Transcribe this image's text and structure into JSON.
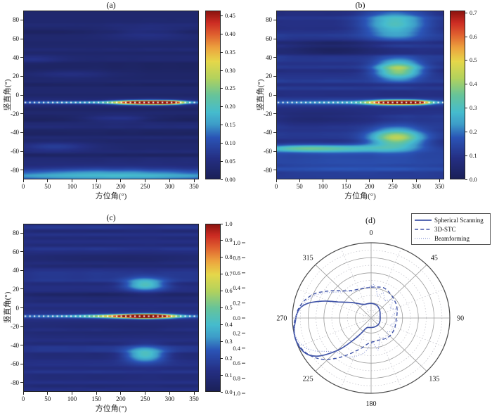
{
  "figure": {
    "background": "#ffffff",
    "panel_titles": [
      "(a)",
      "(b)",
      "(c)",
      "(d)"
    ]
  },
  "colormap": {
    "stops": [
      [
        0.0,
        "#1b2057"
      ],
      [
        0.13,
        "#253085"
      ],
      [
        0.25,
        "#2b55b7"
      ],
      [
        0.33,
        "#3e9ec9"
      ],
      [
        0.4,
        "#46bcce"
      ],
      [
        0.5,
        "#67c49a"
      ],
      [
        0.6,
        "#b2d25e"
      ],
      [
        0.7,
        "#e6d84b"
      ],
      [
        0.78,
        "#eda43f"
      ],
      [
        0.86,
        "#e06030"
      ],
      [
        0.93,
        "#cd2d24"
      ],
      [
        1.0,
        "#8a1410"
      ]
    ]
  },
  "chart_data": [
    {
      "type": "heatmap",
      "panel": "a",
      "title": "(a)",
      "xlabel": "方位角(°)",
      "ylabel": "竖直角(°)",
      "x_range": [
        0,
        360
      ],
      "y_range": [
        -90,
        90
      ],
      "x_ticks": [
        0,
        50,
        100,
        150,
        200,
        250,
        300,
        350
      ],
      "y_ticks": [
        80,
        60,
        40,
        20,
        0,
        -20,
        -40,
        -60,
        -80
      ],
      "colorbar": {
        "labels": [
          "0.00",
          "0.05",
          "0.10",
          "0.15",
          "0.20",
          "0.25",
          "0.30",
          "0.35",
          "0.40",
          "0.45"
        ],
        "values": [
          0,
          0.05,
          0.1,
          0.15,
          0.2,
          0.25,
          0.3,
          0.35,
          0.4,
          0.45
        ],
        "bar_max": 0.465
      },
      "base_level": 0.028,
      "texture": {
        "seed": 11,
        "amp": 0.022
      },
      "dotted_line": {
        "elevation": -8,
        "color": "#ffffff"
      },
      "hotspots": [
        {
          "azimuth": 250,
          "elevation": -8,
          "sigma_az": 40,
          "sigma_el": 1.6,
          "value": 0.46
        },
        {
          "azimuth": 298,
          "elevation": -8,
          "sigma_az": 20,
          "sigma_el": 1.4,
          "value": 0.28
        },
        {
          "azimuth": 180,
          "elevation": -8,
          "sigma_az": 185,
          "sigma_el": 1.2,
          "value": 0.135
        },
        {
          "azimuth": 180,
          "elevation": -85,
          "sigma_az": 240,
          "sigma_el": 5.5,
          "value": 0.152
        },
        {
          "azimuth": 195,
          "elevation": -25,
          "sigma_az": 48,
          "sigma_el": 2.6,
          "value": 0.05
        },
        {
          "azimuth": 65,
          "elevation": -55,
          "sigma_az": 55,
          "sigma_el": 3.5,
          "value": 0.05
        },
        {
          "azimuth": 255,
          "elevation": 66,
          "sigma_az": 60,
          "sigma_el": 5,
          "value": 0.035
        },
        {
          "azimuth": 95,
          "elevation": 22,
          "sigma_az": 60,
          "sigma_el": 3,
          "value": 0.03
        },
        {
          "azimuth": 20,
          "elevation": 38,
          "sigma_az": 40,
          "sigma_el": 3,
          "value": 0.03
        }
      ]
    },
    {
      "type": "heatmap",
      "panel": "b",
      "title": "(b)",
      "xlabel": "方位角(°)",
      "ylabel": "竖直角(°)",
      "x_range": [
        0,
        360
      ],
      "y_range": [
        -90,
        90
      ],
      "x_ticks": [
        0,
        50,
        100,
        150,
        200,
        250,
        300,
        350
      ],
      "y_ticks": [
        80,
        60,
        40,
        20,
        0,
        -20,
        -40,
        -60,
        -80
      ],
      "colorbar": {
        "labels": [
          "0.0",
          "0.1",
          "0.2",
          "0.3",
          "0.4",
          "0.5",
          "0.6",
          "0.7"
        ],
        "values": [
          0,
          0.1,
          0.2,
          0.3,
          0.4,
          0.5,
          0.6,
          0.7
        ],
        "bar_max": 0.71
      },
      "base_level": 0.1,
      "texture": {
        "seed": 23,
        "amp": 0.034
      },
      "dotted_line": {
        "elevation": -8,
        "color": "#ffffff"
      },
      "hotspots": [
        {
          "azimuth": 253,
          "elevation": -8,
          "sigma_az": 36,
          "sigma_el": 1.7,
          "value": 0.68
        },
        {
          "azimuth": 300,
          "elevation": -8,
          "sigma_az": 20,
          "sigma_el": 1.5,
          "value": 0.4
        },
        {
          "azimuth": 180,
          "elevation": -8,
          "sigma_az": 185,
          "sigma_el": 1.5,
          "value": 0.18
        },
        {
          "azimuth": 255,
          "elevation": 76,
          "sigma_az": 46,
          "sigma_el": 11,
          "value": 0.22
        },
        {
          "azimuth": 262,
          "elevation": 27,
          "sigma_az": 34,
          "sigma_el": 7,
          "value": 0.33
        },
        {
          "azimuth": 258,
          "elevation": -46,
          "sigma_az": 40,
          "sigma_el": 7,
          "value": 0.33
        },
        {
          "azimuth": 150,
          "elevation": -57,
          "sigma_az": 95,
          "sigma_el": 3,
          "value": 0.18
        },
        {
          "azimuth": 40,
          "elevation": -57,
          "sigma_az": 60,
          "sigma_el": 2.5,
          "value": 0.15
        },
        {
          "azimuth": 180,
          "elevation": -76,
          "sigma_az": 200,
          "sigma_el": 9,
          "value": 0.06
        },
        {
          "azimuth": 120,
          "elevation": 50,
          "sigma_az": 80,
          "sigma_el": 6,
          "value": -0.07
        },
        {
          "azimuth": 90,
          "elevation": -25,
          "sigma_az": 100,
          "sigma_el": 6,
          "value": -0.06
        }
      ]
    },
    {
      "type": "heatmap",
      "panel": "c",
      "title": "(c)",
      "xlabel": "方位角(°)",
      "ylabel": "竖直角(°)",
      "x_range": [
        0,
        360
      ],
      "y_range": [
        -90,
        90
      ],
      "x_ticks": [
        0,
        50,
        100,
        150,
        200,
        250,
        300,
        350
      ],
      "y_ticks": [
        80,
        60,
        40,
        20,
        0,
        -20,
        -40,
        -60,
        -80
      ],
      "colorbar": {
        "labels": [
          "0.0",
          "0.1",
          "0.2",
          "0.3",
          "0.4",
          "0.5",
          "0.6",
          "0.7",
          "0.8",
          "0.9",
          "1.0"
        ],
        "values": [
          0,
          0.1,
          0.2,
          0.3,
          0.4,
          0.5,
          0.6,
          0.7,
          0.8,
          0.9,
          1.0
        ],
        "bar_max": 1.0
      },
      "base_level": 0.12,
      "texture": {
        "seed": 37,
        "amp": 0.05
      },
      "dotted_line": {
        "elevation": -9,
        "color": "#ffffff"
      },
      "hotspots": [
        {
          "azimuth": 257,
          "elevation": -9,
          "sigma_az": 33,
          "sigma_el": 1.6,
          "value": 0.95
        },
        {
          "azimuth": 215,
          "elevation": -9,
          "sigma_az": 50,
          "sigma_el": 1.4,
          "value": 0.5
        },
        {
          "azimuth": 180,
          "elevation": -9,
          "sigma_az": 185,
          "sigma_el": 1.3,
          "value": 0.27
        },
        {
          "azimuth": 250,
          "elevation": 25,
          "sigma_az": 29,
          "sigma_el": 5,
          "value": 0.33
        },
        {
          "azimuth": 250,
          "elevation": -50,
          "sigma_az": 29,
          "sigma_el": 6,
          "value": 0.33
        },
        {
          "azimuth": 180,
          "elevation": 52,
          "sigma_az": 200,
          "sigma_el": 5,
          "value": -0.07
        },
        {
          "azimuth": 180,
          "elevation": -22,
          "sigma_az": 200,
          "sigma_el": 5,
          "value": -0.055
        },
        {
          "azimuth": 180,
          "elevation": 14,
          "sigma_az": 200,
          "sigma_el": 4,
          "value": -0.05
        }
      ]
    },
    {
      "type": "polar",
      "panel": "d",
      "title": "(d)",
      "angle_labels": [
        "0",
        "45",
        "90",
        "135",
        "180",
        "225",
        "270",
        "315"
      ],
      "radial_major_ticks": [
        0.2,
        0.4,
        0.6,
        0.8,
        1.0
      ],
      "radial_minor_ticks": [
        0.1,
        0.3,
        0.5,
        0.7,
        0.9
      ],
      "ruler_labels": [
        "1.0",
        "0.8",
        "0.6",
        "0.4",
        "0.2",
        "0.0",
        "0.2",
        "0.4",
        "0.6",
        "0.8",
        "1.0"
      ],
      "grid_color": "#9a9a9a",
      "minor_grid_color": "#c0c0c8",
      "outline_color": "#4a4a4a",
      "series": [
        {
          "name": "Spherical Scanning",
          "style": "solid",
          "color": "#4054a8",
          "points": [
            [
              0,
              0.195
            ],
            [
              12,
              0.19
            ],
            [
              25,
              0.182
            ],
            [
              40,
              0.16
            ],
            [
              55,
              0.138
            ],
            [
              70,
              0.122
            ],
            [
              90,
              0.115
            ],
            [
              110,
              0.12
            ],
            [
              130,
              0.126
            ],
            [
              150,
              0.126
            ],
            [
              168,
              0.126
            ],
            [
              185,
              0.127
            ],
            [
              198,
              0.132
            ],
            [
              206,
              0.155
            ],
            [
              212,
              0.24
            ],
            [
              218,
              0.38
            ],
            [
              223,
              0.55
            ],
            [
              228,
              0.7
            ],
            [
              233,
              0.84
            ],
            [
              239,
              0.94
            ],
            [
              246,
              0.985
            ],
            [
              254,
              1.0
            ],
            [
              261,
              0.99
            ],
            [
              267,
              0.965
            ],
            [
              273,
              0.945
            ],
            [
              279,
              0.905
            ],
            [
              284,
              0.82
            ],
            [
              288,
              0.71
            ],
            [
              292,
              0.6
            ],
            [
              297,
              0.47
            ],
            [
              303,
              0.385
            ],
            [
              310,
              0.32
            ],
            [
              318,
              0.262
            ],
            [
              326,
              0.222
            ],
            [
              335,
              0.2
            ],
            [
              347,
              0.195
            ]
          ]
        },
        {
          "name": "3D-STC",
          "style": "dashed",
          "color": "#4054a8",
          "points": [
            [
              0,
              0.41
            ],
            [
              12,
              0.42
            ],
            [
              22,
              0.432
            ],
            [
              32,
              0.415
            ],
            [
              42,
              0.395
            ],
            [
              52,
              0.378
            ],
            [
              62,
              0.365
            ],
            [
              72,
              0.348
            ],
            [
              82,
              0.332
            ],
            [
              92,
              0.32
            ],
            [
              102,
              0.32
            ],
            [
              112,
              0.326
            ],
            [
              122,
              0.332
            ],
            [
              132,
              0.336
            ],
            [
              142,
              0.334
            ],
            [
              152,
              0.32
            ],
            [
              162,
              0.31
            ],
            [
              172,
              0.314
            ],
            [
              180,
              0.322
            ],
            [
              188,
              0.35
            ],
            [
              196,
              0.41
            ],
            [
              204,
              0.48
            ],
            [
              212,
              0.58
            ],
            [
              220,
              0.7
            ],
            [
              228,
              0.82
            ],
            [
              235,
              0.9
            ],
            [
              242,
              0.955
            ],
            [
              250,
              0.99
            ],
            [
              258,
              1.0
            ],
            [
              266,
              0.98
            ],
            [
              272,
              0.952
            ],
            [
              278,
              0.93
            ],
            [
              286,
              0.872
            ],
            [
              294,
              0.79
            ],
            [
              300,
              0.7
            ],
            [
              307,
              0.603
            ],
            [
              316,
              0.503
            ],
            [
              325,
              0.445
            ],
            [
              334,
              0.42
            ],
            [
              343,
              0.408
            ],
            [
              352,
              0.404
            ]
          ]
        },
        {
          "name": "Beamforming",
          "style": "dotted",
          "color": "#8b98d5",
          "points": [
            [
              0,
              0.43
            ],
            [
              5,
              0.452
            ],
            [
              10,
              0.385
            ],
            [
              15,
              0.303
            ],
            [
              20,
              0.332
            ],
            [
              25,
              0.368
            ],
            [
              31,
              0.328
            ],
            [
              37,
              0.282
            ],
            [
              43,
              0.33
            ],
            [
              49,
              0.37
            ],
            [
              55,
              0.322
            ],
            [
              61,
              0.272
            ],
            [
              67,
              0.312
            ],
            [
              73,
              0.35
            ],
            [
              79,
              0.3
            ],
            [
              85,
              0.262
            ],
            [
              91,
              0.3
            ],
            [
              97,
              0.34
            ],
            [
              103,
              0.3
            ],
            [
              109,
              0.262
            ],
            [
              115,
              0.3
            ],
            [
              121,
              0.34
            ],
            [
              127,
              0.302
            ],
            [
              133,
              0.272
            ],
            [
              139,
              0.312
            ],
            [
              145,
              0.35
            ],
            [
              151,
              0.31
            ],
            [
              157,
              0.282
            ],
            [
              163,
              0.35
            ],
            [
              168,
              0.44
            ],
            [
              172,
              0.382
            ],
            [
              176,
              0.322
            ],
            [
              182,
              0.36
            ],
            [
              188,
              0.44
            ],
            [
              194,
              0.5
            ],
            [
              202,
              0.552
            ],
            [
              210,
              0.6
            ],
            [
              218,
              0.615
            ],
            [
              226,
              0.64
            ],
            [
              232,
              0.72
            ],
            [
              238,
              0.83
            ],
            [
              244,
              0.92
            ],
            [
              252,
              0.98
            ],
            [
              259,
              1.0
            ],
            [
              266,
              0.975
            ],
            [
              273,
              0.945
            ],
            [
              280,
              0.9
            ],
            [
              287,
              0.84
            ],
            [
              294,
              0.762
            ],
            [
              300,
              0.672
            ],
            [
              307,
              0.572
            ],
            [
              314,
              0.502
            ],
            [
              320,
              0.462
            ],
            [
              327,
              0.422
            ],
            [
              334,
              0.402
            ],
            [
              341,
              0.41
            ],
            [
              348,
              0.422
            ],
            [
              354,
              0.402
            ]
          ]
        }
      ]
    }
  ]
}
